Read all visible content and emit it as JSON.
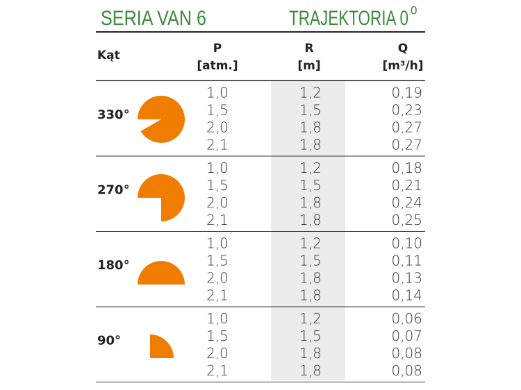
{
  "header": {
    "title": "SERIA VAN 6",
    "subtitle": "TRAJEKTORIA 0",
    "subtitle_sup": "0"
  },
  "columns": [
    {
      "name": "Kąt"
    },
    {
      "name": "P",
      "unit": "[atm.]"
    },
    {
      "name": "R",
      "unit": "[m]"
    },
    {
      "name": "Q",
      "unit": "[m³/h]"
    }
  ],
  "groups": [
    {
      "angle": "330°",
      "rows": [
        [
          "1,0",
          "1,2",
          "0,19"
        ],
        [
          "1,5",
          "1,5",
          "0,23"
        ],
        [
          "2,0",
          "1,8",
          "0,27"
        ],
        [
          "2,1",
          "1,8",
          "0,27"
        ]
      ]
    },
    {
      "angle": "270°",
      "rows": [
        [
          "1,0",
          "1,2",
          "0,18"
        ],
        [
          "1,5",
          "1,5",
          "0,21"
        ],
        [
          "2,0",
          "1,8",
          "0,24"
        ],
        [
          "2,1",
          "1,8",
          "0,25"
        ]
      ]
    },
    {
      "angle": "180°",
      "rows": [
        [
          "1,0",
          "1,2",
          "0,10"
        ],
        [
          "1,5",
          "1,5",
          "0,11"
        ],
        [
          "2,0",
          "1,8",
          "0,13"
        ],
        [
          "2,1",
          "1,8",
          "0,14"
        ]
      ]
    },
    {
      "angle": "90°",
      "rows": [
        [
          "1,0",
          "1,2",
          "0,06"
        ],
        [
          "1,5",
          "1,5",
          "0,07"
        ],
        [
          "2,0",
          "1,8",
          "0,08"
        ],
        [
          "2,1",
          "1,8",
          "0,08"
        ]
      ]
    }
  ]
}
